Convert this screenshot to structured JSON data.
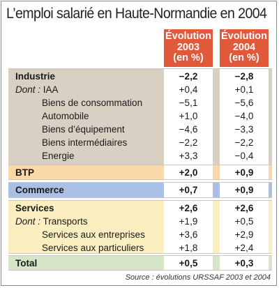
{
  "chart_data": {
    "type": "table",
    "title": "L’emploi salarié en Haute-Normandie en 2004",
    "columns": [
      {
        "line1": "Évolution",
        "line2": "2003",
        "line3": "(en %)"
      },
      {
        "line1": "Évolution",
        "line2": "2004",
        "line3": "(en %)"
      }
    ],
    "groups": [
      {
        "name": "industrie",
        "color": "#d9d0c4",
        "rows": [
          {
            "label": "Industrie",
            "v2003": "−2,2",
            "v2004": "−2,8",
            "style": "bold"
          },
          {
            "prefix": "Dont :",
            "label": "IAA",
            "v2003": "+0,4",
            "v2004": "+0,1",
            "style": "dont"
          },
          {
            "label": "Biens de consommation",
            "v2003": "−5,1",
            "v2004": "−5,6",
            "style": "sub"
          },
          {
            "label": "Automobile",
            "v2003": "+1,0",
            "v2004": "−4,0",
            "style": "sub"
          },
          {
            "label": "Biens d’équipement",
            "v2003": "−4,6",
            "v2004": "−3,3",
            "style": "sub"
          },
          {
            "label": "Biens intermédiaires",
            "v2003": "−2,2",
            "v2004": "−2,2",
            "style": "sub"
          },
          {
            "label": "Energie",
            "v2003": "+3,3",
            "v2004": "−0,4",
            "style": "sub"
          }
        ]
      },
      {
        "name": "btp",
        "color": "#fbd8a8",
        "rows": [
          {
            "label": "BTP",
            "v2003": "+2,0",
            "v2004": "+0,9",
            "style": "bold"
          }
        ]
      },
      {
        "name": "commerce",
        "color": "#a9c0e4",
        "rows": [
          {
            "label": "Commerce",
            "v2003": "+0,7",
            "v2004": "+0,9",
            "style": "bold"
          }
        ]
      },
      {
        "name": "services",
        "color": "#fbefc2",
        "rows": [
          {
            "label": "Services",
            "v2003": "+2,6",
            "v2004": "+2,6",
            "style": "bold"
          },
          {
            "prefix": "Dont :",
            "label": "Transports",
            "v2003": "+1,9",
            "v2004": "+0,5",
            "style": "dont"
          },
          {
            "label": "Services aux entreprises",
            "v2003": "+3,6",
            "v2004": "+2,9",
            "style": "sub"
          },
          {
            "label": "Services aux particuliers",
            "v2003": "+1,8",
            "v2004": "+2,4",
            "style": "sub"
          }
        ]
      },
      {
        "name": "total",
        "color": "#d6e4c8",
        "rows": [
          {
            "label": "Total",
            "v2003": "+0,5",
            "v2004": "+0,3",
            "style": "bold"
          }
        ]
      }
    ],
    "source": "Source : évolutions URSSAF 2003 et 2004"
  },
  "colors": {
    "header": "#e2583a",
    "value_column": "#ffffff"
  }
}
